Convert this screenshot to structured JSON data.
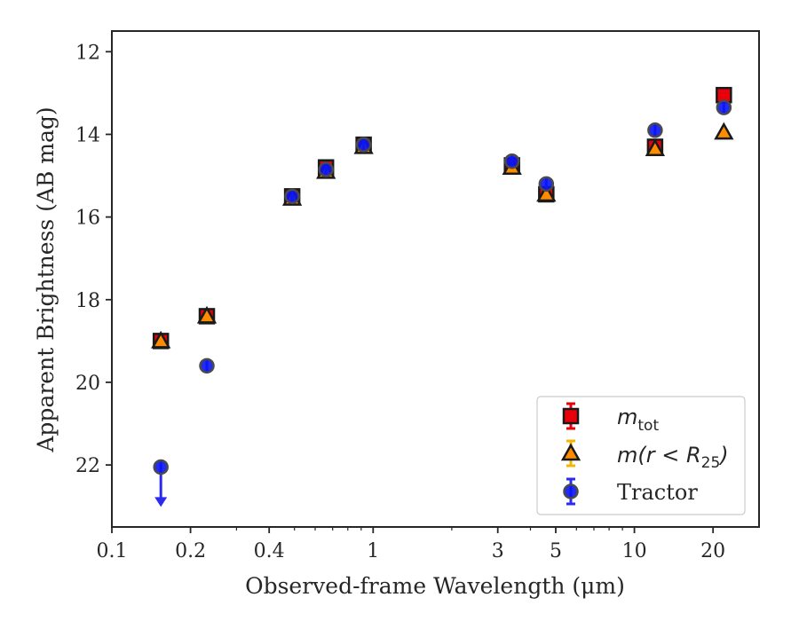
{
  "chart_data": {
    "type": "scatter",
    "xlabel": "Observed-frame Wavelength (μm)",
    "ylabel": "Apparent Brightness (AB mag)",
    "xscale": "log",
    "xlim": [
      0.1,
      30
    ],
    "ylim": [
      23.5,
      11.5
    ],
    "y_inverted": true,
    "xticks": [
      {
        "value": 0.1,
        "label": "0.1"
      },
      {
        "value": 0.2,
        "label": "0.2"
      },
      {
        "value": 0.4,
        "label": "0.4"
      },
      {
        "value": 1,
        "label": "1"
      },
      {
        "value": 3,
        "label": "3"
      },
      {
        "value": 5,
        "label": "5"
      },
      {
        "value": 10,
        "label": "10"
      },
      {
        "value": 20,
        "label": "20"
      }
    ],
    "yticks": [
      {
        "value": 12,
        "label": "12"
      },
      {
        "value": 14,
        "label": "14"
      },
      {
        "value": 16,
        "label": "16"
      },
      {
        "value": 18,
        "label": "18"
      },
      {
        "value": 20,
        "label": "20"
      },
      {
        "value": 22,
        "label": "22"
      }
    ],
    "grid": false,
    "legend_position": "bottom-right",
    "series": [
      {
        "name": "m_tot",
        "marker": "square",
        "color": "#e8000b",
        "ecolor": "#e8000b",
        "x": [
          0.154,
          0.231,
          0.49,
          0.66,
          0.92,
          3.4,
          4.6,
          12.0,
          22.0
        ],
        "y": [
          19.0,
          18.4,
          15.5,
          14.8,
          14.25,
          14.75,
          15.45,
          14.3,
          13.05
        ]
      },
      {
        "name": "m(r < R25)",
        "marker": "triangle",
        "color": "#ff8c00",
        "ecolor": "#f2b705",
        "x": [
          0.154,
          0.231,
          0.49,
          0.66,
          0.92,
          3.4,
          4.6,
          12.0,
          22.0
        ],
        "y": [
          19.0,
          18.4,
          15.55,
          14.9,
          14.3,
          14.8,
          15.45,
          14.35,
          13.95
        ]
      },
      {
        "name": "Tractor",
        "marker": "circle",
        "color": "#0a14f5",
        "ecolor": "#2b2bf0",
        "x": [
          0.154,
          0.231,
          0.49,
          0.66,
          0.92,
          3.4,
          4.6,
          12.0,
          22.0
        ],
        "y": [
          22.05,
          19.6,
          15.5,
          14.85,
          14.25,
          14.65,
          15.2,
          13.9,
          13.35
        ],
        "upper_limit": [
          true,
          false,
          false,
          false,
          false,
          false,
          false,
          false,
          false
        ]
      }
    ],
    "legend": [
      {
        "series": "m_tot",
        "base": "m",
        "sub": "tot"
      },
      {
        "series": "m(r < R25)",
        "text": "m(r < R",
        "sub": "25",
        "tail": ")"
      },
      {
        "series": "Tractor",
        "text": "Tractor"
      }
    ]
  }
}
